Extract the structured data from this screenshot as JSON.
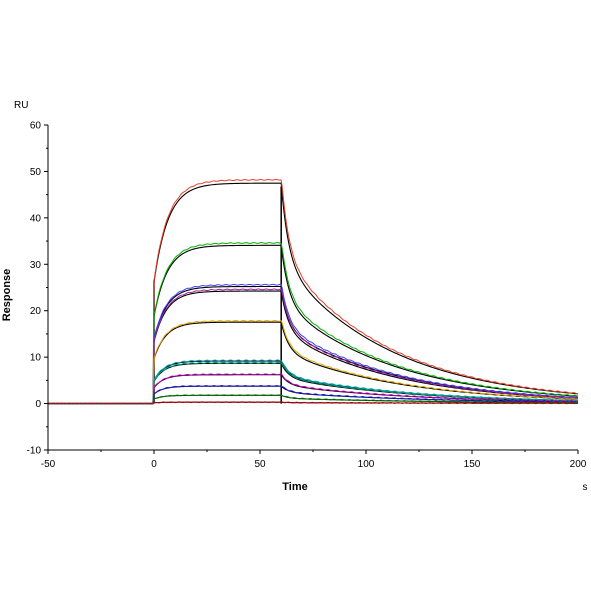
{
  "chart_data": {
    "type": "line",
    "xlabel": "Time",
    "ylabel": "Response",
    "y_unit": "RU",
    "x_unit": "s",
    "xlim": [
      -50,
      200
    ],
    "ylim": [
      -10,
      60
    ],
    "x_ticks": [
      -50,
      0,
      50,
      100,
      150,
      200
    ],
    "y_ticks": [
      -10,
      0,
      10,
      20,
      30,
      40,
      50,
      60
    ],
    "injection_start": 0,
    "injection_end": 60,
    "grid": false,
    "series": [
      {
        "color": "#e8402a",
        "plateau": 48.2,
        "end_value": 3.3
      },
      {
        "color": "#00b000",
        "plateau": 34.6,
        "end_value": 2.5
      },
      {
        "color": "#4040ff",
        "plateau": 25.6,
        "end_value": 2.0
      },
      {
        "color": "#a020a0",
        "plateau": 24.6,
        "end_value": 1.8
      },
      {
        "color": "#e0a000",
        "plateau": 17.8,
        "end_value": 1.5
      },
      {
        "color": "#00a0c0",
        "plateau": 9.3,
        "end_value": 1.0
      },
      {
        "color": "#00a070",
        "plateau": 8.8,
        "end_value": 0.9
      },
      {
        "color": "#c000c0",
        "plateau": 6.3,
        "end_value": 0.7
      },
      {
        "color": "#2020e0",
        "plateau": 3.8,
        "end_value": 0.5
      },
      {
        "color": "#008000",
        "plateau": 1.8,
        "end_value": 0.3
      },
      {
        "color": "#c00000",
        "plateau": 0.3,
        "end_value": 0.1
      }
    ],
    "fit_color": "#000000"
  }
}
